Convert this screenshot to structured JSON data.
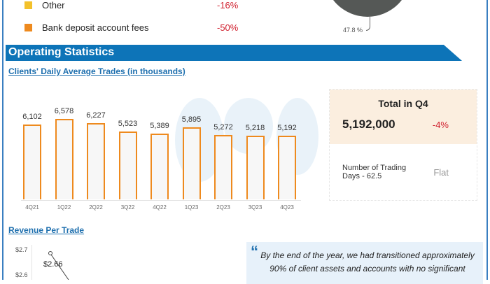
{
  "legend": [
    {
      "label": "Other",
      "change": "-16%",
      "color": "#f3c12b"
    },
    {
      "label": "Bank deposit account fees",
      "change": "-50%",
      "color": "#ee8a1e"
    }
  ],
  "pie": {
    "label": "47.8 %",
    "color": "#555856"
  },
  "section_title": "Operating Statistics",
  "chart_title": "Clients' Daily Average Trades (in thousands)",
  "chart_data": {
    "type": "bar",
    "title": "Clients' Daily Average Trades (in thousands)",
    "categories": [
      "4Q21",
      "1Q22",
      "2Q22",
      "3Q22",
      "4Q22",
      "1Q23",
      "2Q23",
      "3Q23",
      "4Q23"
    ],
    "values": [
      6102,
      6578,
      6227,
      5523,
      5389,
      5895,
      5272,
      5218,
      5192
    ],
    "value_labels": [
      "6,102",
      "6,578",
      "6,227",
      "5,523",
      "5,389",
      "5,895",
      "5,272",
      "5,218",
      "5,192"
    ],
    "bar_color": "#ee8a1e"
  },
  "card": {
    "title": "Total in Q4",
    "value": "5,192,000",
    "change": "-4%",
    "note": "Number of Trading Days - 62.5",
    "note_change": "Flat"
  },
  "revenue": {
    "title": "Revenue Per Trade",
    "y_ticks": [
      "$2.7",
      "$2.6"
    ],
    "point_label": "$2.66"
  },
  "quote": {
    "mark": "“",
    "text": "By the end of the year, we had transitioned approximately 90% of client assets and accounts with no significant"
  }
}
